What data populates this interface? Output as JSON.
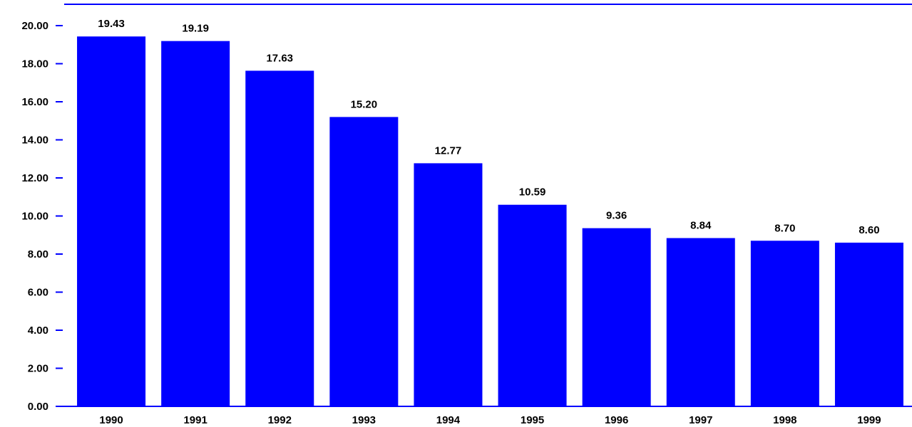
{
  "chart_data": {
    "type": "bar",
    "categories": [
      "1990",
      "1991",
      "1992",
      "1993",
      "1994",
      "1995",
      "1996",
      "1997",
      "1998",
      "1999"
    ],
    "values": [
      19.43,
      19.19,
      17.63,
      15.2,
      12.77,
      10.59,
      9.36,
      8.84,
      8.7,
      8.6
    ],
    "data_labels": [
      "19.43",
      "19.19",
      "17.63",
      "15.20",
      "12.77",
      "10.59",
      "9.36",
      "8.84",
      "8.70",
      "8.60"
    ],
    "y_tick_labels": [
      "0.00",
      "2.00",
      "4.00",
      "6.00",
      "8.00",
      "10.00",
      "12.00",
      "14.00",
      "16.00",
      "18.00",
      "20.00"
    ],
    "title": "",
    "xlabel": "",
    "ylabel": "",
    "ylim": [
      0,
      20
    ],
    "grid": false,
    "colors": {
      "bar": "#0000ff",
      "axis": "#0000ff",
      "text": "#000000"
    }
  }
}
